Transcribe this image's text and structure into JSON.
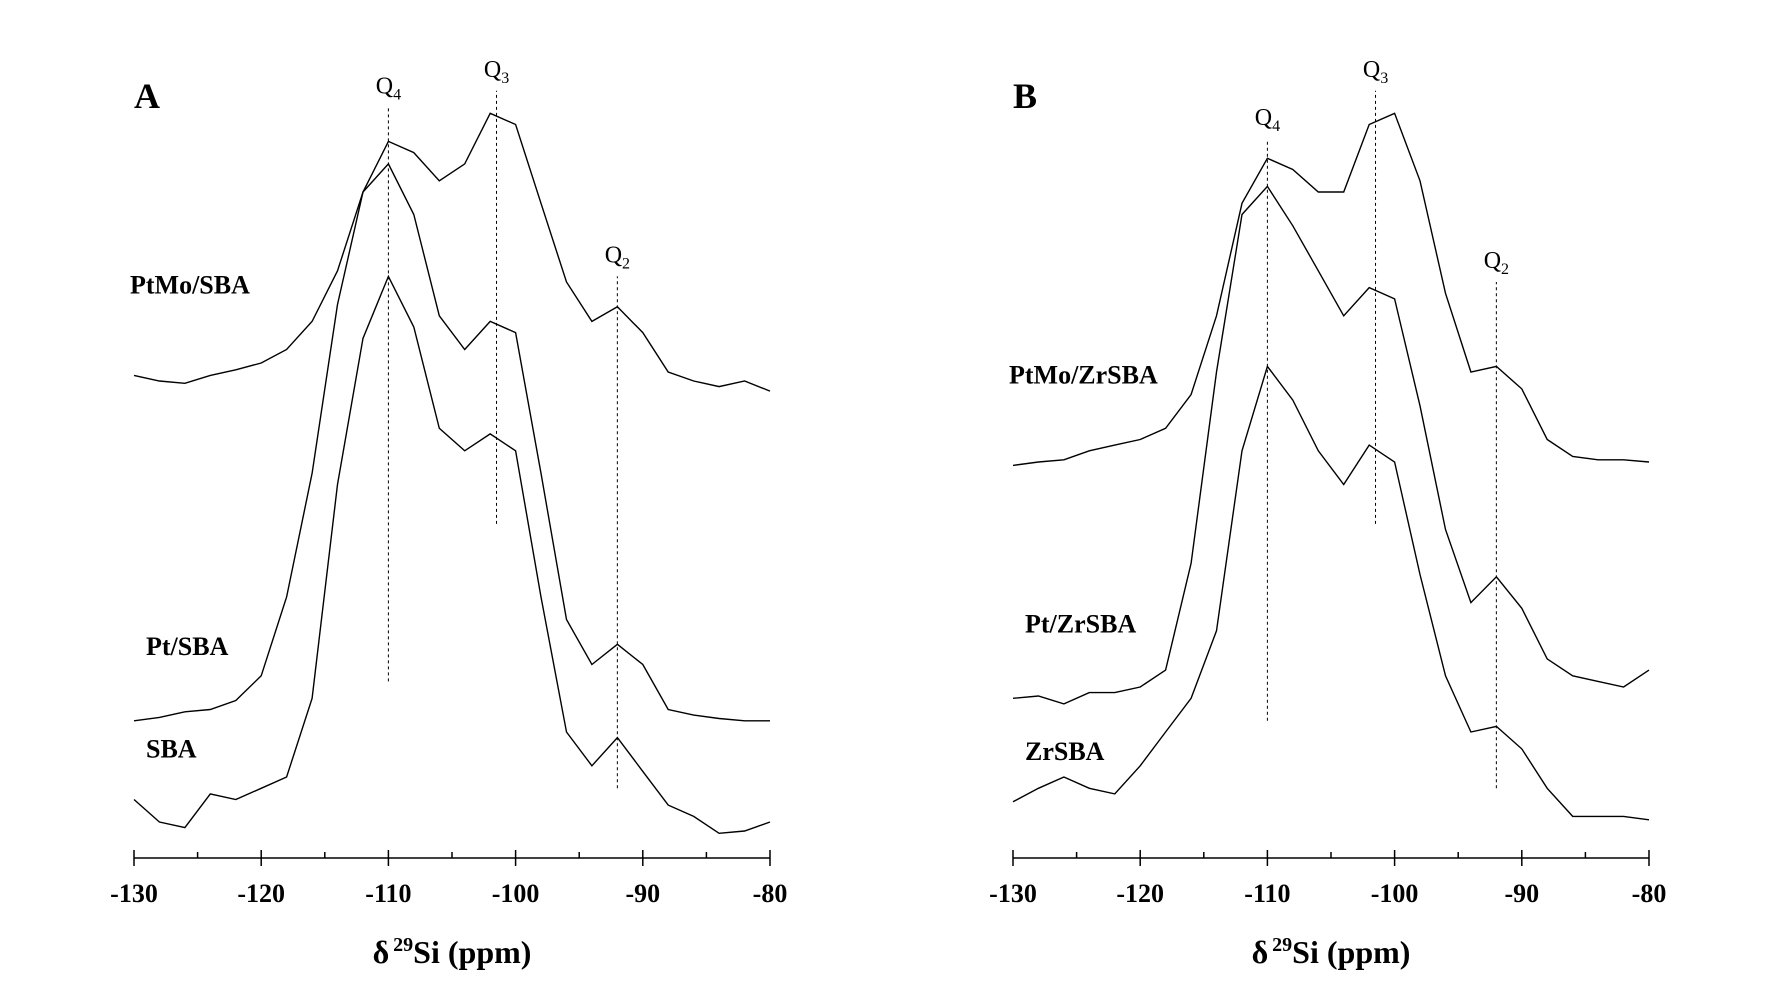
{
  "chart_data": [
    {
      "type": "line",
      "title": "A",
      "x": [
        -130,
        -128,
        -126,
        -124,
        -122,
        -120,
        -118,
        -116,
        -114,
        -112,
        -110,
        -108,
        -106,
        -104,
        -102,
        -100,
        -98,
        -96,
        -94,
        -92,
        -90,
        -88,
        -86,
        -84,
        -82,
        -80
      ],
      "series": [
        {
          "name": "PtMo/SBA",
          "color": "#000000",
          "values": [
            429,
            424,
            422,
            429,
            434,
            440,
            452,
            477,
            522,
            592,
            637,
            627,
            602,
            617,
            662,
            652,
            582,
            512,
            477,
            490,
            467,
            432,
            424,
            419,
            424,
            415
          ]
        },
        {
          "name": "Pt/SBA",
          "color": "#000000",
          "values": [
            122,
            125,
            130,
            132,
            140,
            162,
            232,
            342,
            492,
            592,
            617,
            572,
            482,
            452,
            477,
            467,
            342,
            212,
            172,
            190,
            172,
            132,
            127,
            124,
            122,
            122
          ]
        },
        {
          "name": "SBA",
          "color": "#000000",
          "values": [
            52,
            32,
            27,
            57,
            52,
            62,
            72,
            142,
            332,
            462,
            517,
            472,
            382,
            362,
            377,
            362,
            232,
            112,
            82,
            107,
            77,
            47,
            37,
            22,
            24,
            32
          ]
        }
      ],
      "annotations": [
        {
          "label": "Q",
          "subscript": "4",
          "x": -110,
          "y_range": [
            157,
            667
          ]
        },
        {
          "label": "Q",
          "subscript": "3",
          "x": -101.5,
          "y_range": [
            297,
            682
          ]
        },
        {
          "label": "Q",
          "subscript": "2",
          "x": -92,
          "y_range": [
            62,
            517
          ]
        }
      ],
      "xlim": [
        -130,
        -80
      ],
      "xticks": [
        -130,
        -120,
        -110,
        -100,
        -90,
        -80
      ],
      "minor_xticks": [
        -125,
        -115,
        -105,
        -95,
        -85
      ],
      "ylim": [
        0,
        720
      ],
      "xlabel": {
        "symbol": "δ",
        "superscript": "29",
        "text": "Si (ppm)"
      }
    },
    {
      "type": "line",
      "title": "B",
      "x": [
        -130,
        -128,
        -126,
        -124,
        -122,
        -120,
        -118,
        -116,
        -114,
        -112,
        -110,
        -108,
        -106,
        -104,
        -102,
        -100,
        -98,
        -96,
        -94,
        -92,
        -90,
        -88,
        -86,
        -84,
        -82,
        -80
      ],
      "series": [
        {
          "name": "PtMo/ZrSBA",
          "color": "#000000",
          "values": [
            349,
            352,
            354,
            362,
            367,
            372,
            382,
            412,
            482,
            582,
            622,
            612,
            592,
            592,
            652,
            662,
            602,
            502,
            432,
            437,
            417,
            372,
            357,
            354,
            354,
            352
          ]
        },
        {
          "name": "Pt/ZrSBA",
          "color": "#000000",
          "values": [
            142,
            144,
            137,
            147,
            147,
            152,
            167,
            262,
            432,
            572,
            597,
            562,
            522,
            482,
            507,
            497,
            402,
            292,
            227,
            250,
            222,
            177,
            162,
            157,
            152,
            167
          ]
        },
        {
          "name": "ZrSBA",
          "color": "#000000",
          "values": [
            50,
            62,
            72,
            62,
            57,
            82,
            112,
            142,
            202,
            362,
            437,
            407,
            362,
            332,
            367,
            352,
            252,
            162,
            112,
            117,
            97,
            62,
            37,
            37,
            37,
            34
          ]
        }
      ],
      "annotations": [
        {
          "label": "Q",
          "subscript": "4",
          "x": -110,
          "y_range": [
            122,
            639
          ]
        },
        {
          "label": "Q",
          "subscript": "3",
          "x": -101.5,
          "y_range": [
            297,
            682
          ]
        },
        {
          "label": "Q",
          "subscript": "2",
          "x": -92,
          "y_range": [
            62,
            512
          ]
        }
      ],
      "xlim": [
        -130,
        -80
      ],
      "xticks": [
        -130,
        -120,
        -110,
        -100,
        -90,
        -80
      ],
      "minor_xticks": [
        -125,
        -115,
        -105,
        -95,
        -85
      ],
      "ylim": [
        0,
        720
      ],
      "xlabel": {
        "symbol": "δ",
        "superscript": "29",
        "text": "Si (ppm)"
      }
    }
  ]
}
